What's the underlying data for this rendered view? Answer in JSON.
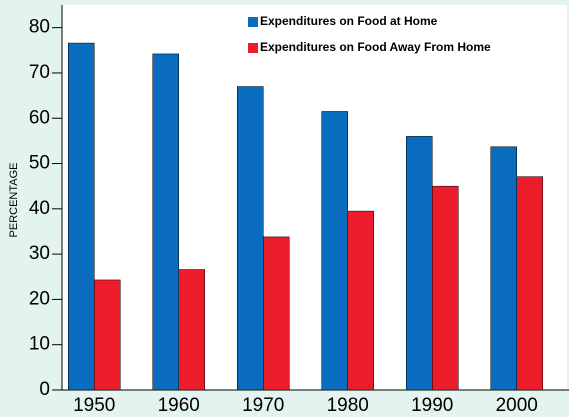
{
  "chart_data": {
    "type": "bar",
    "y_label": "PERCENTAGE",
    "categories": [
      "1950",
      "1960",
      "1970",
      "1980",
      "1990",
      "2000"
    ],
    "series": [
      {
        "name": "Expenditures on Food at Home",
        "color": "#0a6cbf",
        "values": [
          76.6,
          74.2,
          67,
          61.5,
          56,
          53.7
        ]
      },
      {
        "name": "Expenditures on Food Away From Home",
        "color": "#ec1c2a",
        "values": [
          24.3,
          26.6,
          33.8,
          39.5,
          45,
          47.1
        ]
      }
    ],
    "ylim": [
      0,
      85
    ],
    "yticks": [
      0,
      10,
      20,
      30,
      40,
      50,
      60,
      70,
      80
    ],
    "legend": "top"
  }
}
